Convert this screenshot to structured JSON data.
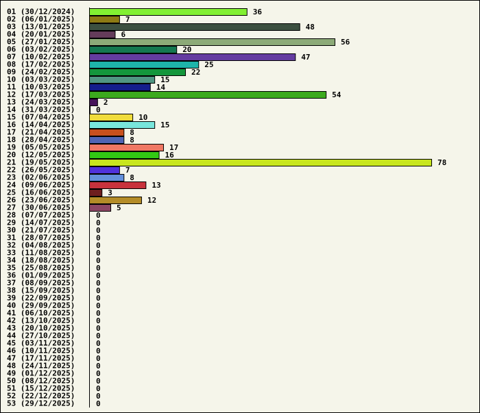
{
  "chart_data": {
    "type": "bar",
    "orientation": "horizontal",
    "title": "",
    "xlabel": "",
    "ylabel": "",
    "grid": false,
    "categories": [
      "01 (30/12/2024)",
      "02 (06/01/2025)",
      "03 (13/01/2025)",
      "04 (20/01/2025)",
      "05 (27/01/2025)",
      "06 (03/02/2025)",
      "07 (10/02/2025)",
      "08 (17/02/2025)",
      "09 (24/02/2025)",
      "10 (03/03/2025)",
      "11 (10/03/2025)",
      "12 (17/03/2025)",
      "13 (24/03/2025)",
      "14 (31/03/2025)",
      "15 (07/04/2025)",
      "16 (14/04/2025)",
      "17 (21/04/2025)",
      "18 (28/04/2025)",
      "19 (05/05/2025)",
      "20 (12/05/2025)",
      "21 (19/05/2025)",
      "22 (26/05/2025)",
      "23 (02/06/2025)",
      "24 (09/06/2025)",
      "25 (16/06/2025)",
      "26 (23/06/2025)",
      "27 (30/06/2025)",
      "28 (07/07/2025)",
      "29 (14/07/2025)",
      "30 (21/07/2025)",
      "31 (28/07/2025)",
      "32 (04/08/2025)",
      "33 (11/08/2025)",
      "34 (18/08/2025)",
      "35 (25/08/2025)",
      "36 (01/09/2025)",
      "37 (08/09/2025)",
      "38 (15/09/2025)",
      "39 (22/09/2025)",
      "40 (29/09/2025)",
      "41 (06/10/2025)",
      "42 (13/10/2025)",
      "43 (20/10/2025)",
      "44 (27/10/2025)",
      "45 (03/11/2025)",
      "46 (10/11/2025)",
      "47 (17/11/2025)",
      "48 (24/11/2025)",
      "49 (01/12/2025)",
      "50 (08/12/2025)",
      "51 (15/12/2025)",
      "52 (22/12/2025)",
      "53 (29/12/2025)"
    ],
    "values": [
      36,
      7,
      48,
      6,
      56,
      20,
      47,
      25,
      22,
      15,
      14,
      54,
      2,
      0,
      10,
      15,
      8,
      8,
      17,
      16,
      78,
      7,
      8,
      13,
      3,
      12,
      5,
      0,
      0,
      0,
      0,
      0,
      0,
      0,
      0,
      0,
      0,
      0,
      0,
      0,
      0,
      0,
      0,
      0,
      0,
      0,
      0,
      0,
      0,
      0,
      0,
      0,
      0
    ],
    "colors": [
      "#82f032",
      "#8c7a14",
      "#3c5040",
      "#643c5a",
      "#8caa78",
      "#147850",
      "#643ca0",
      "#1eb4aa",
      "#14963c",
      "#509682",
      "#141e8c",
      "#3caa1e",
      "#46145a",
      "#ffffff",
      "#f0dc3c",
      "#78e6dc",
      "#c8501e",
      "#5064b4",
      "#f07864",
      "#32c814",
      "#c8e61e",
      "#5032dc",
      "#6490dc",
      "#c8323c",
      "#6e1e1e",
      "#b48c28",
      "#8c4664"
    ],
    "xlim": [
      0,
      78
    ]
  }
}
